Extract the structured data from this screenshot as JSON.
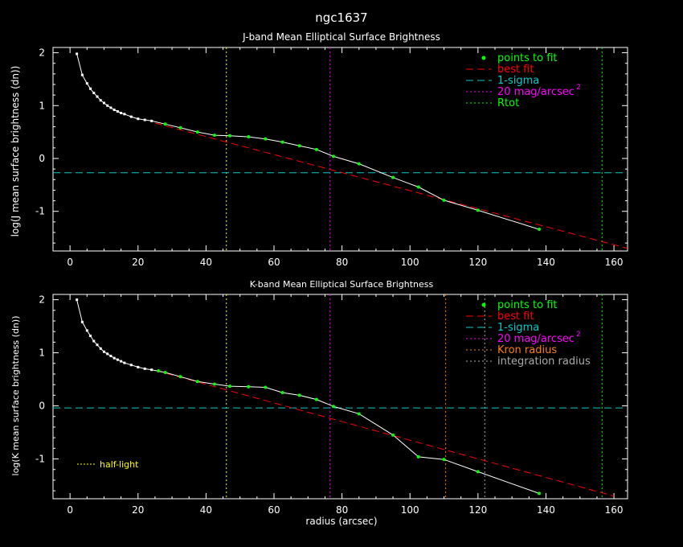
{
  "figure": {
    "title": "ngc1637",
    "xlabel": "radius (arcsec)"
  },
  "colors": {
    "background": "#000000",
    "frame": "#ffffff",
    "profile": "#ffffff",
    "fit_points": "#00ff00",
    "best_fit": "#ff0000",
    "one_sigma": "#00cccc",
    "mag20": "#ff00ff",
    "rtot": "#00ff00",
    "kron": "#ff7f00",
    "integration": "#aaaaaa",
    "half_light": "#ffff00"
  },
  "chart_data": [
    {
      "type": "line",
      "title": "J-band Mean Elliptical Surface Brightness",
      "xlabel": "",
      "ylabel": "log(J mean surface brightness (dn))",
      "xlim": [
        -5,
        164
      ],
      "ylim": [
        -1.75,
        2.1
      ],
      "xticks": [
        0,
        20,
        40,
        60,
        80,
        100,
        120,
        140,
        160
      ],
      "yticks": [
        -1,
        0,
        1,
        2
      ],
      "grid": false,
      "legend_position": "top-right",
      "legend": [
        "points to fit",
        "best fit",
        "1-sigma",
        "20 mag/arcsec",
        "Rtot"
      ],
      "legend_sup": "2",
      "profile": {
        "x": [
          2,
          3.6,
          5,
          6,
          7,
          8,
          9,
          10,
          11,
          12,
          13,
          14,
          15,
          16,
          18,
          20,
          22,
          24,
          28,
          32.5,
          37.5,
          42.5,
          47,
          52.5,
          57.5,
          62.5,
          67.5,
          72.5,
          77.5,
          85,
          95,
          102.5,
          110,
          120,
          138
        ],
        "y": [
          1.98,
          1.58,
          1.42,
          1.32,
          1.24,
          1.17,
          1.1,
          1.05,
          1.0,
          0.96,
          0.92,
          0.89,
          0.86,
          0.84,
          0.79,
          0.75,
          0.73,
          0.71,
          0.65,
          0.58,
          0.5,
          0.44,
          0.43,
          0.41,
          0.37,
          0.31,
          0.24,
          0.17,
          0.04,
          -0.1,
          -0.36,
          -0.54,
          -0.79,
          -0.98,
          -1.34
        ]
      },
      "fit_points": {
        "x": [
          28,
          32.5,
          37.5,
          42.5,
          47,
          52.5,
          57.5,
          62.5,
          67.5,
          72.5,
          77.5,
          85,
          95,
          102.5,
          110,
          120,
          138
        ],
        "y": [
          0.65,
          0.58,
          0.5,
          0.44,
          0.43,
          0.41,
          0.37,
          0.31,
          0.24,
          0.17,
          0.04,
          -0.1,
          -0.36,
          -0.54,
          -0.79,
          -0.98,
          -1.34
        ]
      },
      "best_fit": {
        "x": [
          25,
          164
        ],
        "y": [
          0.67,
          -1.7
        ]
      },
      "one_sigma": -0.27,
      "vlines": [
        {
          "key": "half_light",
          "x": 46
        },
        {
          "key": "mag20",
          "x": 76.5
        },
        {
          "key": "rtot",
          "x": 156.5
        }
      ]
    },
    {
      "type": "line",
      "title": "K-band Mean Elliptical Surface Brightness",
      "xlabel": "radius (arcsec)",
      "ylabel": "log(K mean surface brightness (dn))",
      "xlim": [
        -5,
        164
      ],
      "ylim": [
        -1.75,
        2.1
      ],
      "xticks": [
        0,
        20,
        40,
        60,
        80,
        100,
        120,
        140,
        160
      ],
      "yticks": [
        -1,
        0,
        1,
        2
      ],
      "grid": false,
      "legend_position": "top-right",
      "legend": [
        "points to fit",
        "best fit",
        "1-sigma",
        "20 mag/arcsec",
        "Kron radius",
        "integration radius"
      ],
      "legend_sup": "2",
      "annotation": "half-light",
      "profile": {
        "x": [
          2,
          3.6,
          5,
          6,
          7,
          8,
          9,
          10,
          11,
          12,
          13,
          14,
          15,
          16,
          18,
          20,
          22,
          24,
          28,
          32.5,
          37.5,
          42.5,
          47,
          52.5,
          57.5,
          62.5,
          67.5,
          72.5,
          77.5,
          85,
          95,
          102.5,
          110,
          120,
          138
        ],
        "y": [
          2.0,
          1.58,
          1.42,
          1.32,
          1.22,
          1.15,
          1.08,
          1.02,
          0.98,
          0.94,
          0.9,
          0.87,
          0.84,
          0.81,
          0.77,
          0.73,
          0.7,
          0.68,
          0.63,
          0.55,
          0.46,
          0.41,
          0.37,
          0.36,
          0.35,
          0.25,
          0.2,
          0.12,
          -0.01,
          -0.15,
          -0.55,
          -0.96,
          -1.01,
          -1.24,
          -1.65
        ]
      },
      "fit_points": {
        "x": [
          26,
          28,
          32.5,
          37.5,
          42.5,
          47,
          52.5,
          57.5,
          62.5,
          67.5,
          72.5,
          77.5,
          85,
          95,
          102.5,
          110,
          120,
          138
        ],
        "y": [
          0.66,
          0.63,
          0.55,
          0.46,
          0.41,
          0.37,
          0.36,
          0.35,
          0.25,
          0.2,
          0.12,
          -0.01,
          -0.15,
          -0.55,
          -0.96,
          -1.01,
          -1.24,
          -1.65
        ]
      },
      "best_fit": {
        "x": [
          25,
          160
        ],
        "y": [
          0.67,
          -1.7
        ]
      },
      "one_sigma": -0.04,
      "vlines": [
        {
          "key": "half_light",
          "x": 46
        },
        {
          "key": "mag20",
          "x": 76.5
        },
        {
          "key": "kron",
          "x": 110.5
        },
        {
          "key": "integration",
          "x": 122
        },
        {
          "key": "rtot",
          "x": 156.5
        }
      ]
    }
  ]
}
